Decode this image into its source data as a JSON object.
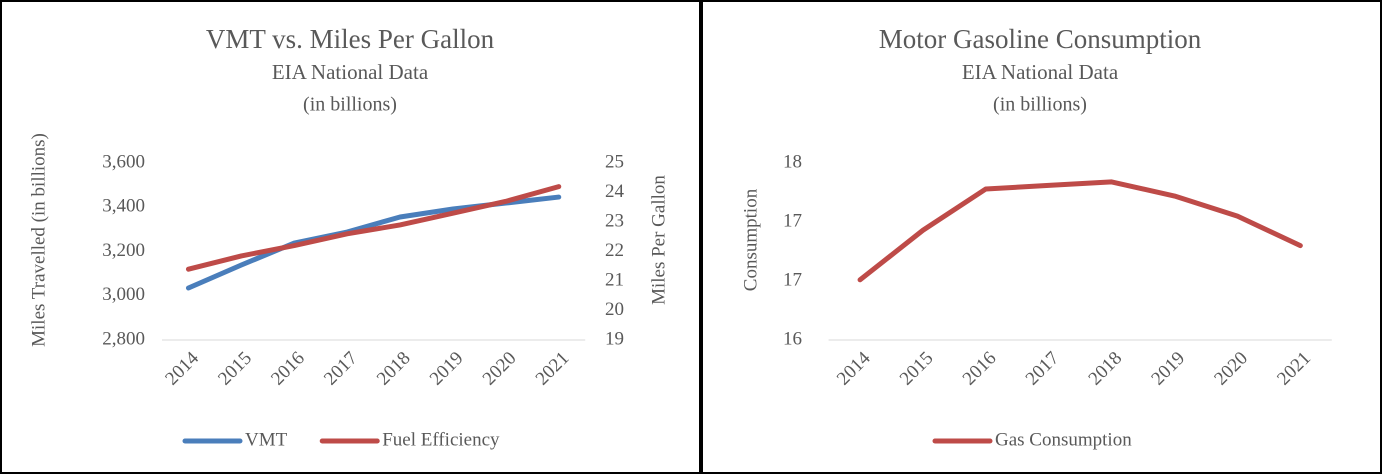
{
  "chart_data": [
    {
      "type": "line",
      "title_lines": [
        "VMT vs. Miles Per Gallon",
        "EIA National Data",
        "(in billions)"
      ],
      "ylabel": "Miles Travelled (in billions)",
      "y2label": "Miles Per Gallon",
      "categories": [
        "2014",
        "2015",
        "2016",
        "2017",
        "2018",
        "2019",
        "2020",
        "2021"
      ],
      "series": [
        {
          "name": "VMT",
          "color": "#4a7ebb",
          "values": [
            3035,
            3139,
            3238,
            3288,
            3356,
            3392,
            3419,
            3446
          ]
        },
        {
          "name": "Fuel Efficiency",
          "color": "#be4b48",
          "axis": "y2",
          "values": [
            21.4,
            21.85,
            22.2,
            22.6,
            22.9,
            23.3,
            23.7,
            24.2
          ]
        }
      ],
      "ylim": [
        2800,
        3600
      ],
      "yticks": [
        {
          "value": 2800,
          "label": "2,800"
        },
        {
          "value": 3000,
          "label": "3,000"
        },
        {
          "value": 3200,
          "label": "3,200"
        },
        {
          "value": 3400,
          "label": "3,400"
        },
        {
          "value": 3600,
          "label": "3,600"
        }
      ],
      "y2lim": [
        19,
        25
      ],
      "y2ticks": [
        19,
        20,
        21,
        22,
        23,
        24,
        25
      ]
    },
    {
      "type": "line",
      "title_lines": [
        "Motor Gasoline Consumption",
        "EIA National Data",
        "(in billions)"
      ],
      "ylabel": "Consumption",
      "categories": [
        "2014",
        "2015",
        "2016",
        "2017",
        "2018",
        "2019",
        "2020",
        "2021"
      ],
      "series": [
        {
          "name": "Gas Consumption",
          "color": "#be4b48",
          "values": [
            16.51,
            16.93,
            17.28,
            17.31,
            17.34,
            17.22,
            17.05,
            16.8
          ]
        }
      ],
      "ylim": [
        16,
        17.5
      ],
      "yticks": [
        16,
        {
          "value": 16.5,
          "label": "17"
        },
        17,
        {
          "value": 17.5,
          "label": "18"
        }
      ]
    }
  ]
}
